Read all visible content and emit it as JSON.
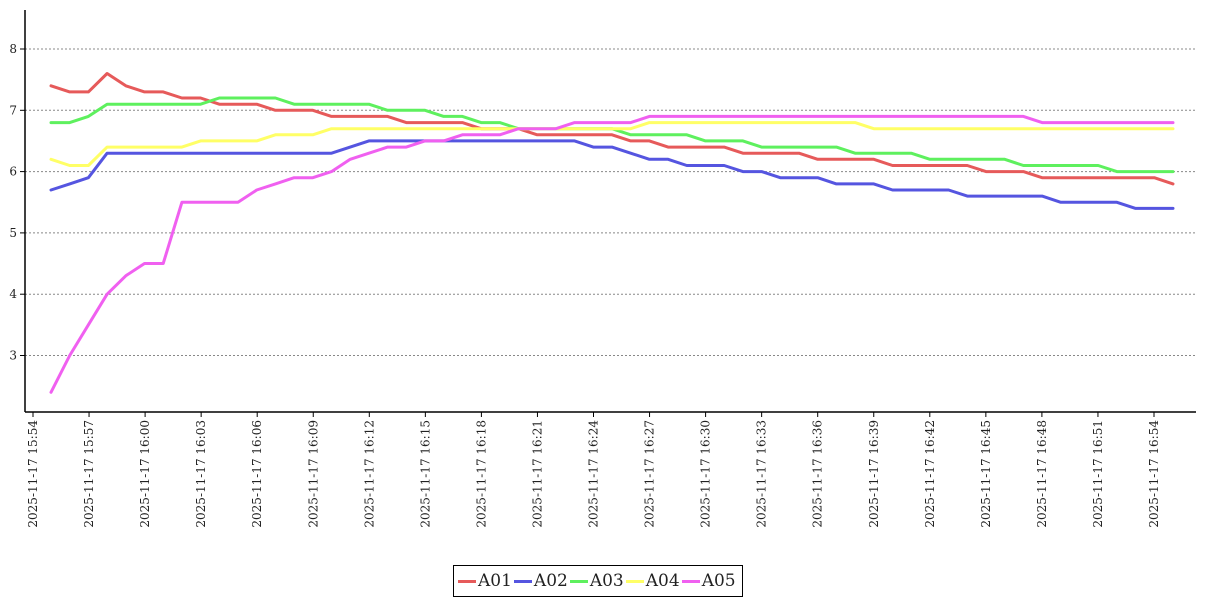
{
  "chart_data": {
    "type": "line",
    "title": "",
    "xlabel": "",
    "ylabel": "",
    "ylim": [
      2.1,
      8.6
    ],
    "yticks": [
      3,
      4,
      5,
      6,
      7,
      8
    ],
    "grid": true,
    "legend_position": "bottom-center",
    "x": [
      "2025-11-17 15:55",
      "2025-11-17 15:56",
      "2025-11-17 15:57",
      "2025-11-17 15:58",
      "2025-11-17 15:59",
      "2025-11-17 16:00",
      "2025-11-17 16:01",
      "2025-11-17 16:02",
      "2025-11-17 16:03",
      "2025-11-17 16:04",
      "2025-11-17 16:05",
      "2025-11-17 16:06",
      "2025-11-17 16:07",
      "2025-11-17 16:08",
      "2025-11-17 16:09",
      "2025-11-17 16:10",
      "2025-11-17 16:11",
      "2025-11-17 16:12",
      "2025-11-17 16:13",
      "2025-11-17 16:14",
      "2025-11-17 16:15",
      "2025-11-17 16:16",
      "2025-11-17 16:17",
      "2025-11-17 16:18",
      "2025-11-17 16:19",
      "2025-11-17 16:20",
      "2025-11-17 16:21",
      "2025-11-17 16:22",
      "2025-11-17 16:23",
      "2025-11-17 16:24",
      "2025-11-17 16:25",
      "2025-11-17 16:26",
      "2025-11-17 16:27",
      "2025-11-17 16:28",
      "2025-11-17 16:29",
      "2025-11-17 16:30",
      "2025-11-17 16:31",
      "2025-11-17 16:32",
      "2025-11-17 16:33",
      "2025-11-17 16:34",
      "2025-11-17 16:35",
      "2025-11-17 16:36",
      "2025-11-17 16:37",
      "2025-11-17 16:38",
      "2025-11-17 16:39",
      "2025-11-17 16:40",
      "2025-11-17 16:41",
      "2025-11-17 16:42",
      "2025-11-17 16:43",
      "2025-11-17 16:44",
      "2025-11-17 16:45",
      "2025-11-17 16:46",
      "2025-11-17 16:47",
      "2025-11-17 16:48",
      "2025-11-17 16:49",
      "2025-11-17 16:50",
      "2025-11-17 16:51",
      "2025-11-17 16:52",
      "2025-11-17 16:53",
      "2025-11-17 16:54",
      "2025-11-17 16:55"
    ],
    "x_tick_labels": [
      "2025-11-17 15:54",
      "2025-11-17 15:57",
      "2025-11-17 16:00",
      "2025-11-17 16:03",
      "2025-11-17 16:06",
      "2025-11-17 16:09",
      "2025-11-17 16:12",
      "2025-11-17 16:15",
      "2025-11-17 16:18",
      "2025-11-17 16:21",
      "2025-11-17 16:24",
      "2025-11-17 16:27",
      "2025-11-17 16:30",
      "2025-11-17 16:33",
      "2025-11-17 16:36",
      "2025-11-17 16:39",
      "2025-11-17 16:42",
      "2025-11-17 16:45",
      "2025-11-17 16:48",
      "2025-11-17 16:51",
      "2025-11-17 16:54"
    ],
    "series": [
      {
        "name": "A01",
        "color": "#e65a5a",
        "values": [
          7.4,
          7.3,
          7.3,
          7.6,
          7.4,
          7.3,
          7.3,
          7.2,
          7.2,
          7.1,
          7.1,
          7.1,
          7.0,
          7.0,
          7.0,
          6.9,
          6.9,
          6.9,
          6.9,
          6.8,
          6.8,
          6.8,
          6.8,
          6.7,
          6.7,
          6.7,
          6.6,
          6.6,
          6.6,
          6.6,
          6.6,
          6.5,
          6.5,
          6.4,
          6.4,
          6.4,
          6.4,
          6.3,
          6.3,
          6.3,
          6.3,
          6.2,
          6.2,
          6.2,
          6.2,
          6.1,
          6.1,
          6.1,
          6.1,
          6.1,
          6.0,
          6.0,
          6.0,
          5.9,
          5.9,
          5.9,
          5.9,
          5.9,
          5.9,
          5.9,
          5.8
        ]
      },
      {
        "name": "A02",
        "color": "#5555e0",
        "values": [
          5.7,
          5.8,
          5.9,
          6.3,
          6.3,
          6.3,
          6.3,
          6.3,
          6.3,
          6.3,
          6.3,
          6.3,
          6.3,
          6.3,
          6.3,
          6.3,
          6.4,
          6.5,
          6.5,
          6.5,
          6.5,
          6.5,
          6.5,
          6.5,
          6.5,
          6.5,
          6.5,
          6.5,
          6.5,
          6.4,
          6.4,
          6.3,
          6.2,
          6.2,
          6.1,
          6.1,
          6.1,
          6.0,
          6.0,
          5.9,
          5.9,
          5.9,
          5.8,
          5.8,
          5.8,
          5.7,
          5.7,
          5.7,
          5.7,
          5.6,
          5.6,
          5.6,
          5.6,
          5.6,
          5.5,
          5.5,
          5.5,
          5.5,
          5.4,
          5.4,
          5.4
        ]
      },
      {
        "name": "A03",
        "color": "#5ef05e",
        "values": [
          6.8,
          6.8,
          6.9,
          7.1,
          7.1,
          7.1,
          7.1,
          7.1,
          7.1,
          7.2,
          7.2,
          7.2,
          7.2,
          7.1,
          7.1,
          7.1,
          7.1,
          7.1,
          7.0,
          7.0,
          7.0,
          6.9,
          6.9,
          6.8,
          6.8,
          6.7,
          6.7,
          6.7,
          6.7,
          6.7,
          6.7,
          6.6,
          6.6,
          6.6,
          6.6,
          6.5,
          6.5,
          6.5,
          6.4,
          6.4,
          6.4,
          6.4,
          6.4,
          6.3,
          6.3,
          6.3,
          6.3,
          6.2,
          6.2,
          6.2,
          6.2,
          6.2,
          6.1,
          6.1,
          6.1,
          6.1,
          6.1,
          6.0,
          6.0,
          6.0,
          6.0
        ]
      },
      {
        "name": "A04",
        "color": "#ffff66",
        "values": [
          6.2,
          6.1,
          6.1,
          6.4,
          6.4,
          6.4,
          6.4,
          6.4,
          6.5,
          6.5,
          6.5,
          6.5,
          6.6,
          6.6,
          6.6,
          6.7,
          6.7,
          6.7,
          6.7,
          6.7,
          6.7,
          6.7,
          6.7,
          6.7,
          6.7,
          6.7,
          6.7,
          6.7,
          6.7,
          6.7,
          6.7,
          6.7,
          6.8,
          6.8,
          6.8,
          6.8,
          6.8,
          6.8,
          6.8,
          6.8,
          6.8,
          6.8,
          6.8,
          6.8,
          6.7,
          6.7,
          6.7,
          6.7,
          6.7,
          6.7,
          6.7,
          6.7,
          6.7,
          6.7,
          6.7,
          6.7,
          6.7,
          6.7,
          6.7,
          6.7,
          6.7
        ]
      },
      {
        "name": "A05",
        "color": "#f060f0",
        "values": [
          2.4,
          3.0,
          3.5,
          4.0,
          4.3,
          4.5,
          4.5,
          5.5,
          5.5,
          5.5,
          5.5,
          5.7,
          5.8,
          5.9,
          5.9,
          6.0,
          6.2,
          6.3,
          6.4,
          6.4,
          6.5,
          6.5,
          6.6,
          6.6,
          6.6,
          6.7,
          6.7,
          6.7,
          6.8,
          6.8,
          6.8,
          6.8,
          6.9,
          6.9,
          6.9,
          6.9,
          6.9,
          6.9,
          6.9,
          6.9,
          6.9,
          6.9,
          6.9,
          6.9,
          6.9,
          6.9,
          6.9,
          6.9,
          6.9,
          6.9,
          6.9,
          6.9,
          6.9,
          6.8,
          6.8,
          6.8,
          6.8,
          6.8,
          6.8,
          6.8,
          6.8
        ]
      }
    ]
  }
}
